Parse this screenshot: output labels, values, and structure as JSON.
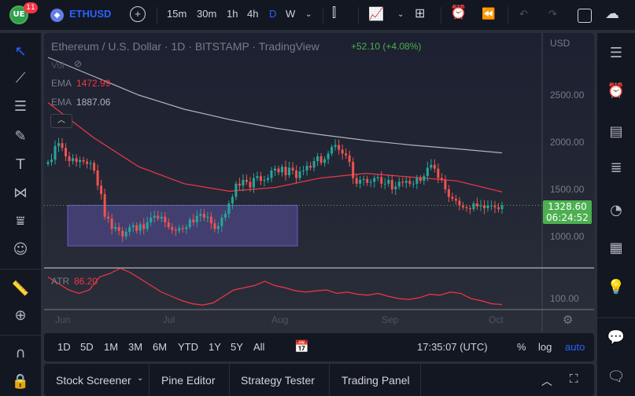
{
  "topbar": {
    "badge": "11",
    "symbol": "ETHUSD",
    "intervals": [
      "15m",
      "30m",
      "1h",
      "4h",
      "D",
      "W"
    ],
    "active_interval": "D"
  },
  "legend": {
    "title": "Ethereum / U.S. Dollar · 1D · BITSTAMP · TradingView",
    "change": "+52.10 (+4.08%)",
    "vol": "Vol",
    "ema1_label": "EMA",
    "ema1_value": "1472.99",
    "ema2_label": "EMA",
    "ema2_value": "1887.06",
    "atr_label": "ATR",
    "atr_value": "86.20"
  },
  "price_axis": {
    "currency": "USD",
    "ticks": [
      "2500.00",
      "2000.00",
      "1500.00",
      "1000.00"
    ],
    "current_price": "1328.60",
    "countdown": "06:24:52",
    "atr_tick": "100.00"
  },
  "time_axis": [
    "Jun",
    "Jul",
    "Aug",
    "Sep",
    "Oct"
  ],
  "ranges": [
    "1D",
    "5D",
    "1M",
    "3M",
    "6M",
    "YTD",
    "1Y",
    "5Y",
    "All"
  ],
  "clock": "17:35:07 (UTC)",
  "scale_options": [
    "%",
    "log",
    "auto"
  ],
  "panels": [
    "Stock Screener",
    "Pine Editor",
    "Strategy Tester",
    "Trading Panel"
  ],
  "colors": {
    "up": "#26a69a",
    "down": "#ef5350",
    "ema_red": "#f23645",
    "ema_grey": "#b2b5be",
    "accent": "#2962ff",
    "price_label": "#4caf50"
  },
  "chart_data": {
    "type": "candlestick",
    "closes": [
      1790,
      1815,
      1960,
      1990,
      1940,
      1850,
      1800,
      1830,
      1790,
      1810,
      1795,
      1770,
      1780,
      1700,
      1540,
      1450,
      1210,
      1190,
      1080,
      1100,
      1060,
      1000,
      1050,
      1100,
      1120,
      1060,
      1130,
      1080,
      1150,
      1200,
      1220,
      1190,
      1210,
      1150,
      1100,
      1070,
      1060,
      1090,
      1080,
      1100,
      1180,
      1150,
      1220,
      1240,
      1200,
      1210,
      1140,
      1080,
      1110,
      1200,
      1240,
      1350,
      1420,
      1560,
      1540,
      1600,
      1580,
      1520,
      1620,
      1640,
      1590,
      1600,
      1620,
      1700,
      1720,
      1680,
      1740,
      1650,
      1730,
      1700,
      1620,
      1690,
      1700,
      1750,
      1730,
      1800,
      1850,
      1780,
      1820,
      1880,
      1950,
      1970,
      1920,
      1880,
      1860,
      1790,
      1620,
      1560,
      1600,
      1610,
      1570,
      1580,
      1620,
      1630,
      1560,
      1560,
      1600,
      1500,
      1530,
      1580,
      1570,
      1590,
      1560,
      1560,
      1620,
      1590,
      1640,
      1730,
      1760,
      1720,
      1620,
      1600,
      1500,
      1420,
      1400,
      1380,
      1330,
      1310,
      1300,
      1290,
      1350,
      1320,
      1330,
      1300,
      1330,
      1330,
      1310,
      1290,
      1330
    ],
    "ema_long": [
      2900,
      2700,
      2500,
      2350,
      2240,
      2150,
      2080,
      2020,
      1970,
      1930,
      1887
    ],
    "ema_short": [
      2420,
      2050,
      1740,
      1560,
      1480,
      1520,
      1620,
      1670,
      1630,
      1590,
      1473
    ],
    "atr": [
      150,
      135,
      120,
      112,
      120,
      150,
      158,
      170,
      160,
      145,
      130,
      115,
      105,
      95,
      88,
      85,
      90,
      105,
      120,
      125,
      130,
      140,
      130,
      125,
      118,
      115,
      118,
      120,
      112,
      115,
      110,
      108,
      112,
      105,
      100,
      98,
      102,
      110,
      108,
      115,
      112,
      100,
      95,
      88,
      86.2
    ],
    "selection_box": {
      "price_top": 1330,
      "price_bottom": 900
    }
  }
}
